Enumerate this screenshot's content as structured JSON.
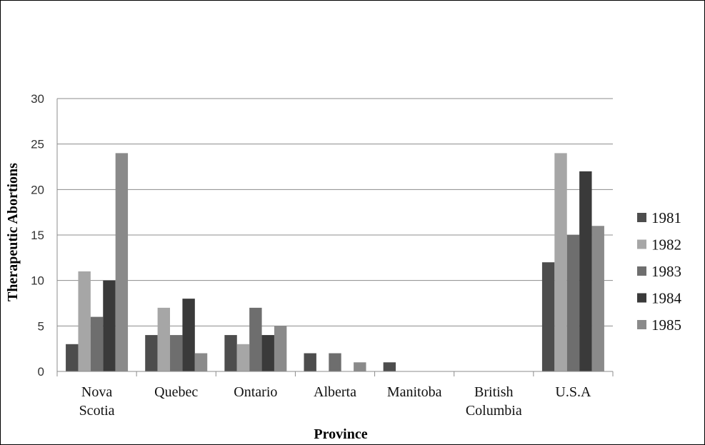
{
  "chart_data": {
    "type": "bar",
    "title": "",
    "xlabel": "Province",
    "ylabel": "Therapeutic Abortions",
    "ylim": [
      0,
      30
    ],
    "yticks": [
      0,
      5,
      10,
      15,
      20,
      25,
      30
    ],
    "grid": true,
    "legend_position": "right",
    "categories": [
      [
        "Nova",
        "Scotia"
      ],
      [
        "Quebec"
      ],
      [
        "Ontario"
      ],
      [
        "Alberta"
      ],
      [
        "Manitoba"
      ],
      [
        "British",
        "Columbia"
      ],
      [
        "U.S.A"
      ]
    ],
    "series": [
      {
        "name": "1981",
        "color": "#4d4d4d",
        "values": [
          3,
          4,
          4,
          2,
          1,
          0,
          12
        ]
      },
      {
        "name": "1982",
        "color": "#a6a6a6",
        "values": [
          11,
          7,
          3,
          0,
          0,
          0,
          24
        ]
      },
      {
        "name": "1983",
        "color": "#6e6e6e",
        "values": [
          6,
          4,
          7,
          2,
          0,
          0,
          15
        ]
      },
      {
        "name": "1984",
        "color": "#3a3a3a",
        "values": [
          10,
          8,
          4,
          0,
          0,
          0,
          22
        ]
      },
      {
        "name": "1985",
        "color": "#8a8a8a",
        "values": [
          24,
          2,
          5,
          1,
          0,
          0,
          16
        ]
      }
    ]
  }
}
